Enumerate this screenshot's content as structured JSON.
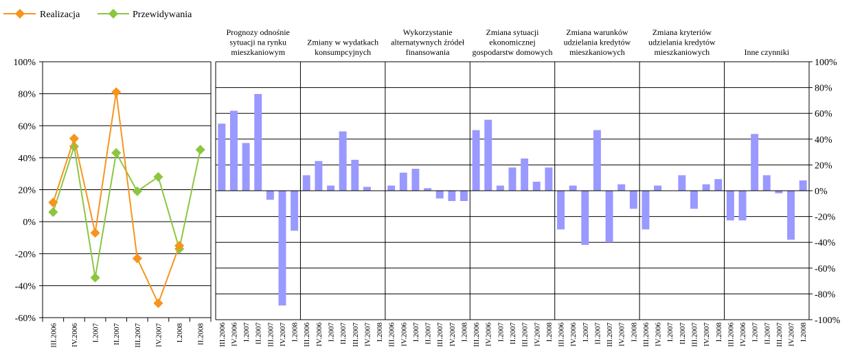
{
  "colors": {
    "realization": "#F7941D",
    "forecast": "#8CC63F",
    "bars": "#9999FF",
    "axis": "#000000"
  },
  "legend": {
    "realization_label": "Realizacja",
    "forecast_label": "Przewidywania"
  },
  "chart_data": [
    {
      "type": "line",
      "categories": [
        "III.2006",
        "IV.2006",
        "I.2007",
        "II.2007",
        "III.2007",
        "IV.2007",
        "I.2008",
        "II.2008"
      ],
      "ylim": [
        -60,
        100
      ],
      "yticks": [
        "100%",
        "80%",
        "60%",
        "40%",
        "20%",
        "0%",
        "-20%",
        "-40%",
        "-60%"
      ],
      "grid": true,
      "legend_position": "top-left",
      "series": [
        {
          "name": "Realizacja",
          "values": [
            12,
            52,
            -7,
            81,
            -23,
            -51,
            -15,
            null
          ]
        },
        {
          "name": "Przewidywania",
          "values": [
            6,
            47,
            -35,
            43,
            19,
            28,
            -17,
            45
          ]
        }
      ]
    },
    {
      "type": "bar",
      "ylim": [
        -100,
        100
      ],
      "yticks": [
        "100%",
        "80%",
        "60%",
        "40%",
        "20%",
        "0%",
        "-20%",
        "-40%",
        "-60%",
        "-80%",
        "-100%"
      ],
      "grid": true,
      "panels": [
        {
          "title": "Prognozy odnośnie sytuacji na rynku mieszkaniowym",
          "categories": [
            "III.2006",
            "IV.2006",
            "I.2007",
            "II.2007",
            "III.2007",
            "IV.2007",
            "I.2008"
          ],
          "values": [
            52,
            62,
            37,
            75,
            -7,
            -89,
            -31
          ]
        },
        {
          "title": "Zmiany w wydatkach konsumpcyjnych",
          "categories": [
            "III.2006",
            "IV.2006",
            "I.2007",
            "II.2007",
            "III.2007",
            "IV.2007",
            "I.2008"
          ],
          "values": [
            12,
            23,
            4,
            46,
            24,
            3,
            null
          ]
        },
        {
          "title": "Wykorzystanie alternatywnych źródeł finansowania",
          "categories": [
            "III.2006",
            "IV.2006",
            "I.2007",
            "II.2007",
            "III.2007",
            "IV.2007",
            "I.2008"
          ],
          "values": [
            4,
            14,
            17,
            2,
            -6,
            -8,
            -8
          ]
        },
        {
          "title": "Zmiana sytuacji ekonomicznej gospodarstw domowych",
          "categories": [
            "III.2006",
            "IV.2006",
            "I.2007",
            "II.2007",
            "III.2007",
            "IV.2007",
            "I.2008"
          ],
          "values": [
            47,
            55,
            4,
            18,
            25,
            7,
            18
          ]
        },
        {
          "title": "Zmiana warunków udzielania kredytów mieszkaniowych",
          "categories": [
            "III.2006",
            "IV.2006",
            "I.2007",
            "II.2007",
            "III.2007",
            "IV.2007",
            "I.2008"
          ],
          "values": [
            -30,
            4,
            -42,
            47,
            -40,
            5,
            -14
          ]
        },
        {
          "title": "Zmiana kryteriów udzielania kredytów mieszkaniowych",
          "categories": [
            "III.2006",
            "IV.2006",
            "I.2007",
            "II.2007",
            "III.2007",
            "IV.2007",
            "I.2008"
          ],
          "values": [
            -30,
            4,
            null,
            12,
            -14,
            5,
            9
          ]
        },
        {
          "title": "Inne czynniki",
          "categories": [
            "III.2006",
            "IV.2006",
            "I.2007",
            "II.2007",
            "III.2007",
            "IV.2007",
            "I.2008"
          ],
          "values": [
            -23,
            -23,
            44,
            12,
            -2,
            -38,
            8
          ]
        }
      ]
    }
  ]
}
